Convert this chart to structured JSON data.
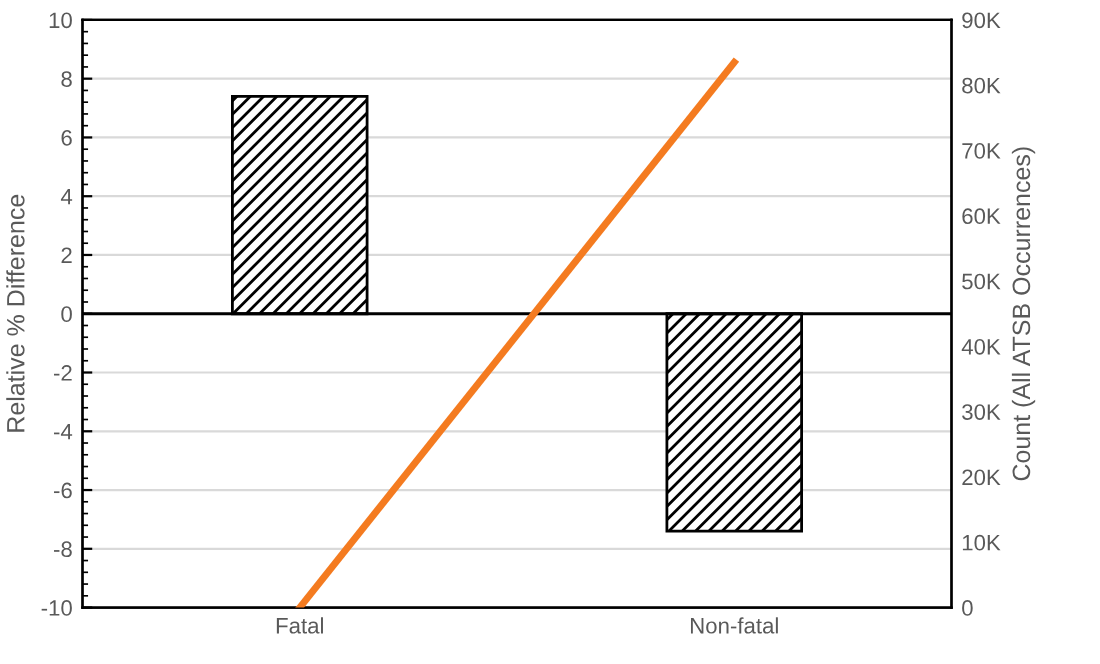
{
  "chart_data": {
    "type": "bar",
    "categories": [
      "Fatal",
      "Non-fatal"
    ],
    "ylabel": "Relative % Difference",
    "y2label": "Count (All ATSB Occurrences)",
    "series": [
      {
        "color": "#000000",
        "values": [
          7.4,
          -7.4
        ]
      },
      {
        "type": "line",
        "axis": "y2",
        "color": "#f47b20",
        "values": [
          0,
          83500
        ]
      }
    ],
    "ylim": [
      -10,
      10
    ],
    "yticks": [
      -10,
      -8,
      -6,
      -4,
      -2,
      0,
      2,
      4,
      6,
      8,
      10
    ],
    "y2lim": [
      0,
      90000
    ],
    "y2ticks": [
      {
        "value": 0,
        "label": "0"
      },
      {
        "value": 10000,
        "label": "10K"
      },
      {
        "value": 20000,
        "label": "20K"
      },
      {
        "value": 30000,
        "label": "30K"
      },
      {
        "value": 40000,
        "label": "40K"
      },
      {
        "value": 50000,
        "label": "50K"
      },
      {
        "value": 60000,
        "label": "60K"
      },
      {
        "value": 70000,
        "label": "70K"
      },
      {
        "value": 80000,
        "label": "80K"
      },
      {
        "value": 90000,
        "label": "90K"
      }
    ],
    "grid": "y",
    "marker": "none",
    "line_style": "solid",
    "legend": false
  }
}
